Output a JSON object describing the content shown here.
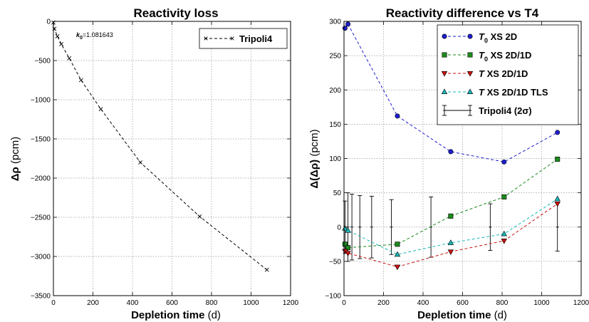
{
  "chart_data": [
    {
      "type": "line",
      "title": "Reactivity loss",
      "xlabel_main": "Depletion time",
      "xlabel_unit": "(d)",
      "ylabel_main": "Δρ",
      "ylabel_unit": "(pcm)",
      "xlim": [
        0,
        1200
      ],
      "ylim": [
        -3500,
        0
      ],
      "xticks": [
        0,
        200,
        400,
        600,
        800,
        1000,
        1200
      ],
      "yticks": [
        -3500,
        -3000,
        -2500,
        -2000,
        -1500,
        -1000,
        -500,
        0
      ],
      "grid": true,
      "legend_position": "top-right",
      "annotation": {
        "sym": "k",
        "sub": "0",
        "text": "=1.081643"
      },
      "series": [
        {
          "name": "Tripoli4",
          "color": "#000000",
          "x": [
            0,
            5,
            20,
            40,
            80,
            140,
            240,
            440,
            740,
            1080
          ],
          "y": [
            -15,
            -95,
            -190,
            -290,
            -470,
            -750,
            -1120,
            -1800,
            -2490,
            -3170
          ]
        }
      ]
    },
    {
      "type": "line",
      "title": "Reactivity difference vs T4",
      "xlabel_main": "Depletion time",
      "xlabel_unit": "(d)",
      "ylabel_main": "Δ(Δρ)",
      "ylabel_unit": "(pcm)",
      "xlim": [
        0,
        1200
      ],
      "ylim": [
        -100,
        300
      ],
      "xticks": [
        0,
        200,
        400,
        600,
        800,
        1000,
        1200
      ],
      "yticks": [
        -100,
        -50,
        0,
        50,
        100,
        150,
        200,
        250,
        300
      ],
      "grid": true,
      "legend_position": "top-right",
      "series": [
        {
          "name_sym": "T",
          "name_sub": "0",
          "name_rest": " XS 2D",
          "color": "#1f1fd1",
          "marker": "circle",
          "x": [
            5,
            20,
            270,
            540,
            810,
            1080
          ],
          "y": [
            290,
            296,
            162,
            110,
            95,
            138
          ]
        },
        {
          "name_sym": "T",
          "name_sub": "0",
          "name_rest": " XS 2D/1D",
          "color": "#1d8a1d",
          "marker": "square",
          "x": [
            5,
            20,
            270,
            540,
            810,
            1080
          ],
          "y": [
            -25,
            -30,
            -25,
            16,
            44,
            99
          ]
        },
        {
          "name_sym": "T",
          "name_sub": "",
          "name_rest": " XS 2D/1D",
          "color": "#cc1010",
          "marker": "triangle-down",
          "x": [
            5,
            20,
            270,
            540,
            810,
            1080
          ],
          "y": [
            -35,
            -38,
            -58,
            -36,
            -20,
            34
          ]
        },
        {
          "name_sym": "T",
          "name_sub": "",
          "name_rest": " XS 2D/1D TLS",
          "color": "#18b6b6",
          "marker": "triangle-up",
          "x": [
            5,
            20,
            270,
            540,
            810,
            1080
          ],
          "y": [
            -2,
            -5,
            -40,
            -23,
            -10,
            41
          ]
        }
      ],
      "errorbars": {
        "name": "Tripoli4 (2σ)",
        "color": "#000000",
        "x": [
          5,
          20,
          40,
          80,
          140,
          240,
          440,
          740,
          1080
        ],
        "y": [
          0,
          0,
          0,
          0,
          0,
          0,
          0,
          0,
          0
        ],
        "err": [
          38,
          50,
          48,
          46,
          45,
          40,
          44,
          34,
          35
        ]
      }
    }
  ]
}
